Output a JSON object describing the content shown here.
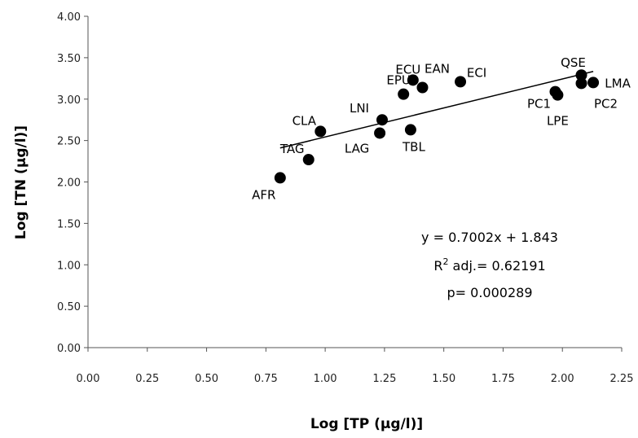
{
  "chart_data": {
    "type": "scatter",
    "title": "",
    "xlabel": "Log [TP (µg/l)]",
    "ylabel": "Log [TN (µg/l)]",
    "xlim": [
      0,
      2.25
    ],
    "ylim": [
      0,
      4
    ],
    "x_ticks": [
      "0.00",
      "0.25",
      "0.50",
      "0.75",
      "1.00",
      "1.25",
      "1.50",
      "1.75",
      "2.00",
      "2.25"
    ],
    "y_ticks": [
      "0.00",
      "0.50",
      "1.00",
      "1.50",
      "2.00",
      "2.50",
      "3.00",
      "3.50",
      "4.00"
    ],
    "grid": false,
    "legend": "none",
    "marker_color": "#000000",
    "points": [
      {
        "label": "AFR",
        "x": 0.81,
        "y": 2.05
      },
      {
        "label": "TAG",
        "x": 0.93,
        "y": 2.27
      },
      {
        "label": "CLA",
        "x": 0.98,
        "y": 2.61
      },
      {
        "label": "LAG",
        "x": 1.23,
        "y": 2.59
      },
      {
        "label": "LNI",
        "x": 1.24,
        "y": 2.75
      },
      {
        "label": "TBL",
        "x": 1.36,
        "y": 2.63
      },
      {
        "label": "EPU",
        "x": 1.33,
        "y": 3.06
      },
      {
        "label": "ECU",
        "x": 1.37,
        "y": 3.23
      },
      {
        "label": "EAN",
        "x": 1.41,
        "y": 3.14
      },
      {
        "label": "ECI",
        "x": 1.57,
        "y": 3.21
      },
      {
        "label": "PC1",
        "x": 1.97,
        "y": 3.09
      },
      {
        "label": "LPE",
        "x": 1.98,
        "y": 3.05
      },
      {
        "label": "QSE",
        "x": 2.08,
        "y": 3.29
      },
      {
        "label": "PC2",
        "x": 2.08,
        "y": 3.19
      },
      {
        "label": "LMA",
        "x": 2.13,
        "y": 3.2
      }
    ],
    "trendline": {
      "slope": 0.7002,
      "intercept": 1.843,
      "x_range": [
        0.81,
        2.13
      ]
    },
    "annotations": {
      "equation": "y = 0.7002x + 1.843",
      "r2_prefix": "R",
      "r2_sup": "2",
      "r2_rest": " adj.= 0.62191",
      "p_value": "p= 0.000289"
    }
  }
}
